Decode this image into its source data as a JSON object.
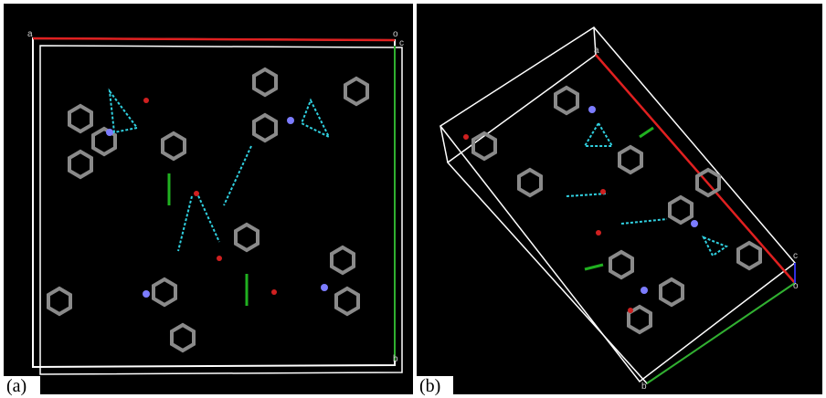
{
  "panels": [
    {
      "label": "(a)",
      "axis_labels": [
        "a",
        "o",
        "c",
        "b"
      ]
    },
    {
      "label": "(b)",
      "axis_labels": [
        "a",
        "c",
        "o",
        "b"
      ]
    }
  ]
}
